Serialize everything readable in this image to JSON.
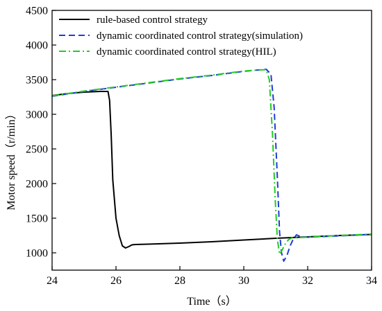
{
  "chart_data": {
    "type": "line",
    "title": "",
    "xlabel": "Time（s）",
    "ylabel": "Motor speed（r/min）",
    "xlim": [
      24,
      34
    ],
    "ylim": [
      750,
      4500
    ],
    "xticks": [
      "24",
      "26",
      "28",
      "30",
      "32",
      "34"
    ],
    "yticks": [
      "1000",
      "1500",
      "2000",
      "2500",
      "3000",
      "3500",
      "4000",
      "4500"
    ],
    "grid": false,
    "legend_position": "top-left",
    "series": [
      {
        "name": "rule-based control strategy",
        "color": "#000000",
        "style": "solid",
        "x": [
          24.0,
          24.5,
          25.0,
          25.5,
          25.75,
          25.8,
          25.85,
          25.9,
          26.0,
          26.1,
          26.2,
          26.3,
          26.4,
          26.5,
          26.6,
          27.0,
          28.0,
          29.0,
          30.0,
          31.0,
          32.0,
          33.0,
          34.0
        ],
        "y": [
          3270,
          3300,
          3320,
          3330,
          3330,
          3200,
          2700,
          2050,
          1500,
          1250,
          1100,
          1070,
          1090,
          1115,
          1120,
          1125,
          1140,
          1160,
          1185,
          1210,
          1230,
          1250,
          1265
        ]
      },
      {
        "name": "dynamic coordinated control strategy(simulation)",
        "color": "#1f3bd6",
        "style": "dashed",
        "x": [
          24.0,
          25.0,
          26.0,
          27.0,
          28.0,
          29.0,
          30.0,
          30.7,
          30.85,
          30.95,
          31.05,
          31.12,
          31.18,
          31.25,
          31.35,
          31.45,
          31.55,
          31.65,
          31.8,
          32.0,
          32.5,
          33.0,
          34.0
        ],
        "y": [
          3260,
          3330,
          3390,
          3450,
          3510,
          3560,
          3620,
          3650,
          3580,
          3100,
          2100,
          1300,
          1000,
          880,
          960,
          1100,
          1200,
          1260,
          1230,
          1225,
          1235,
          1245,
          1265
        ]
      },
      {
        "name": "dynamic coordinated control strategy(HIL)",
        "color": "#22cc22",
        "style": "dashdot",
        "x": [
          24.0,
          25.0,
          26.0,
          27.0,
          28.0,
          29.0,
          30.0,
          30.7,
          30.8,
          30.9,
          30.98,
          31.05,
          31.12,
          31.2,
          31.3,
          31.4,
          31.5,
          32.0,
          32.5,
          33.0,
          34.0
        ],
        "y": [
          3265,
          3335,
          3395,
          3455,
          3515,
          3565,
          3625,
          3645,
          3500,
          2700,
          1800,
          1200,
          980,
          1040,
          1130,
          1190,
          1215,
          1225,
          1240,
          1250,
          1270
        ]
      }
    ]
  }
}
